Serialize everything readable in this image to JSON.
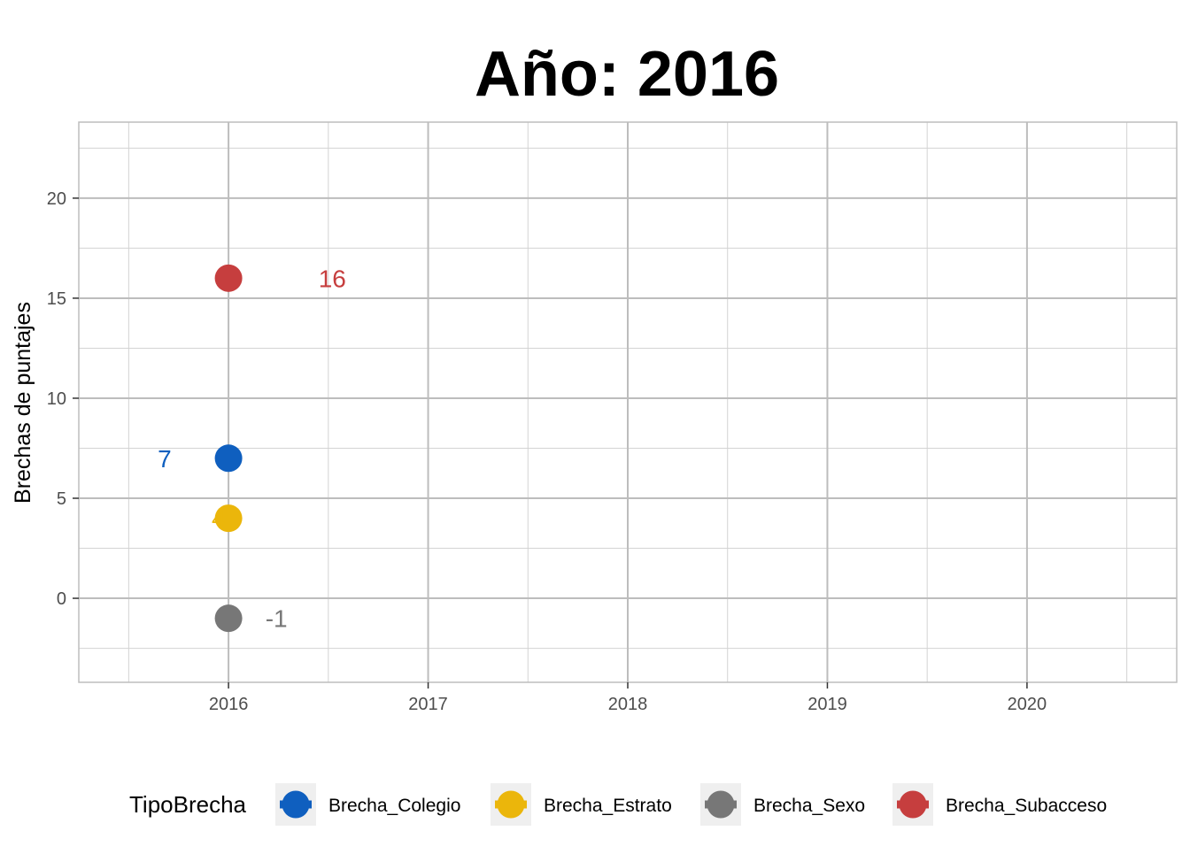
{
  "chart_data": {
    "type": "scatter",
    "title": "Año: 2016",
    "xlabel": "",
    "ylabel": "Brechas de puntajes",
    "x_ticks": [
      "2016",
      "2017",
      "2018",
      "2019",
      "2020"
    ],
    "y_ticks": [
      "0",
      "5",
      "10",
      "15",
      "20"
    ],
    "xlim": [
      2015.25,
      2020.75
    ],
    "ylim": [
      -4.2,
      23.8
    ],
    "grid": true,
    "legend": {
      "title": "TipoBrecha",
      "position": "bottom"
    },
    "series": [
      {
        "name": "Brecha_Colegio",
        "color": "#0F5FBF",
        "points": [
          {
            "x": 2016,
            "y": 7
          }
        ],
        "label": "7",
        "label_x": 2015.68,
        "label_y": 7
      },
      {
        "name": "Brecha_Estrato",
        "color": "#EBB60B",
        "points": [
          {
            "x": 2016,
            "y": 4
          }
        ],
        "label": "4",
        "label_x": 2015.95,
        "label_y": 4
      },
      {
        "name": "Brecha_Sexo",
        "color": "#777777",
        "points": [
          {
            "x": 2016,
            "y": -1
          }
        ],
        "label": "-1",
        "label_x": 2016.24,
        "label_y": -1
      },
      {
        "name": "Brecha_Subacceso",
        "color": "#C63E3E",
        "points": [
          {
            "x": 2016,
            "y": 16
          }
        ],
        "label": "16",
        "label_x": 2016.52,
        "label_y": 16
      }
    ]
  }
}
